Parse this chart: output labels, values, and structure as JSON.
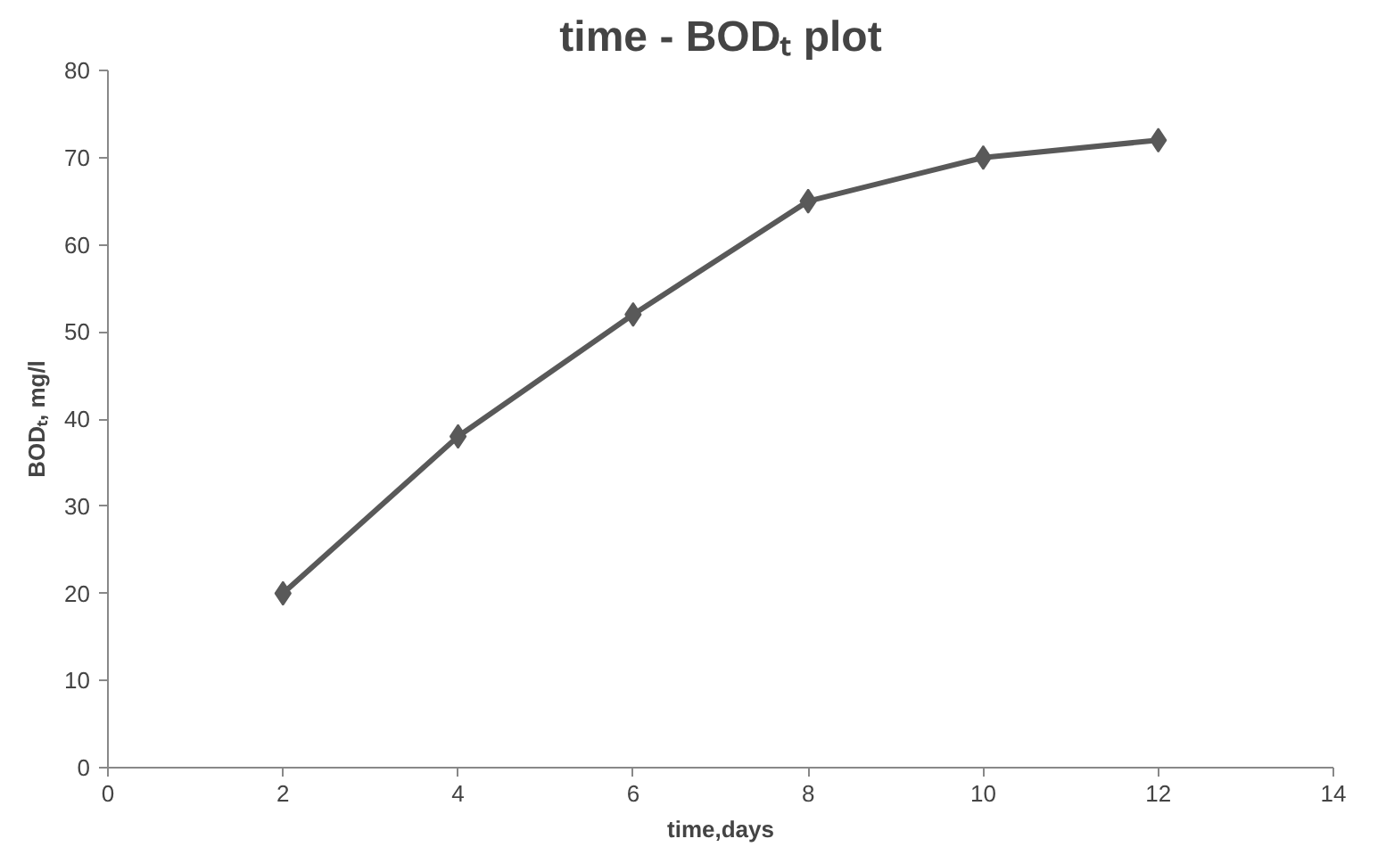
{
  "chart_data": {
    "type": "line",
    "title": "time - BODₜ plot",
    "xlabel": "time,days",
    "ylabel": "BODₜ, mg/l",
    "x": [
      2,
      4,
      6,
      8,
      10,
      12
    ],
    "series": [
      {
        "color": "#595959",
        "values": [
          20,
          38,
          52,
          65,
          70,
          72
        ]
      }
    ],
    "xlim": [
      0,
      14
    ],
    "xticks": [
      0,
      2,
      4,
      6,
      8,
      10,
      12,
      14
    ],
    "ylim": [
      0,
      80
    ],
    "yticks": [
      0,
      10,
      20,
      30,
      40,
      50,
      60,
      70,
      80
    ],
    "marker": "diamond",
    "line_style": "solid"
  }
}
